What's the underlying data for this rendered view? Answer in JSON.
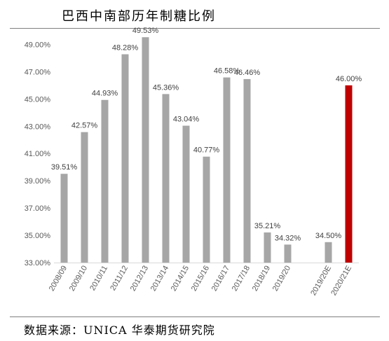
{
  "title": "巴西中南部历年制糖比例",
  "source": "数据来源：UNICA  华泰期货研究院",
  "chart_data": {
    "type": "bar",
    "title": "巴西中南部历年制糖比例",
    "xlabel": "",
    "ylabel": "",
    "ylim": [
      33.0,
      50.0
    ],
    "yticks": [
      "33.00%",
      "35.00%",
      "37.00%",
      "39.00%",
      "41.00%",
      "43.00%",
      "45.00%",
      "47.00%",
      "49.00%"
    ],
    "ytick_values": [
      33,
      35,
      37,
      39,
      41,
      43,
      45,
      47,
      49
    ],
    "grid": false,
    "legend": "none",
    "categories": [
      "2008/09",
      "2009/10",
      "2010/11",
      "2011/12",
      "2012/13",
      "2013/14",
      "2014/15",
      "2015/16",
      "2016/17",
      "2017/18",
      "2018/19",
      "2019/20",
      "",
      "2019/20E",
      "2020/21E"
    ],
    "values": [
      39.51,
      42.57,
      44.93,
      48.28,
      49.53,
      45.36,
      43.04,
      40.77,
      46.58,
      46.46,
      35.21,
      34.32,
      null,
      34.5,
      46.0
    ],
    "data_labels": [
      "39.51%",
      "42.57%",
      "44.93%",
      "48.28%",
      "49.53%",
      "45.36%",
      "43.04%",
      "40.77%",
      "46.58%",
      "46.46%",
      "35.21%",
      "34.32%",
      "",
      "34.50%",
      "46.00%"
    ],
    "colors": [
      "#a6a6a6",
      "#a6a6a6",
      "#a6a6a6",
      "#a6a6a6",
      "#a6a6a6",
      "#a6a6a6",
      "#a6a6a6",
      "#a6a6a6",
      "#a6a6a6",
      "#a6a6a6",
      "#a6a6a6",
      "#a6a6a6",
      "",
      "#a6a6a6",
      "#c00000"
    ]
  }
}
